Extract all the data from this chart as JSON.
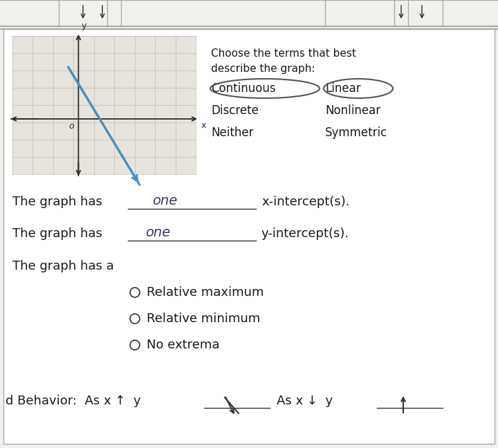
{
  "bg_color": "#f2f0ec",
  "graph_bg": "#e6e4dc",
  "graph_line_color": "#4a8fbe",
  "axis_color": "#2a2a2a",
  "grid_color": "#c0bdb5",
  "title_text": "Choose the terms that best\ndescribe the graph:",
  "terms": [
    [
      "Continuous",
      "Linear"
    ],
    [
      "Discrete",
      "Nonlinear"
    ],
    [
      "Neither",
      "Symmetric"
    ]
  ],
  "intercept_end1": "x-intercept(s).",
  "intercept_end2": "y-intercept(s).",
  "extrema_line": "The graph has a",
  "extrema_options": [
    "Relative maximum",
    "Relative minimum",
    "No extrema"
  ],
  "text_color": "#1a1a1a",
  "handwriting_color": "#3a3a5a",
  "border_color": "#aaaaaa",
  "top_bar_color": "#e0ddd8"
}
